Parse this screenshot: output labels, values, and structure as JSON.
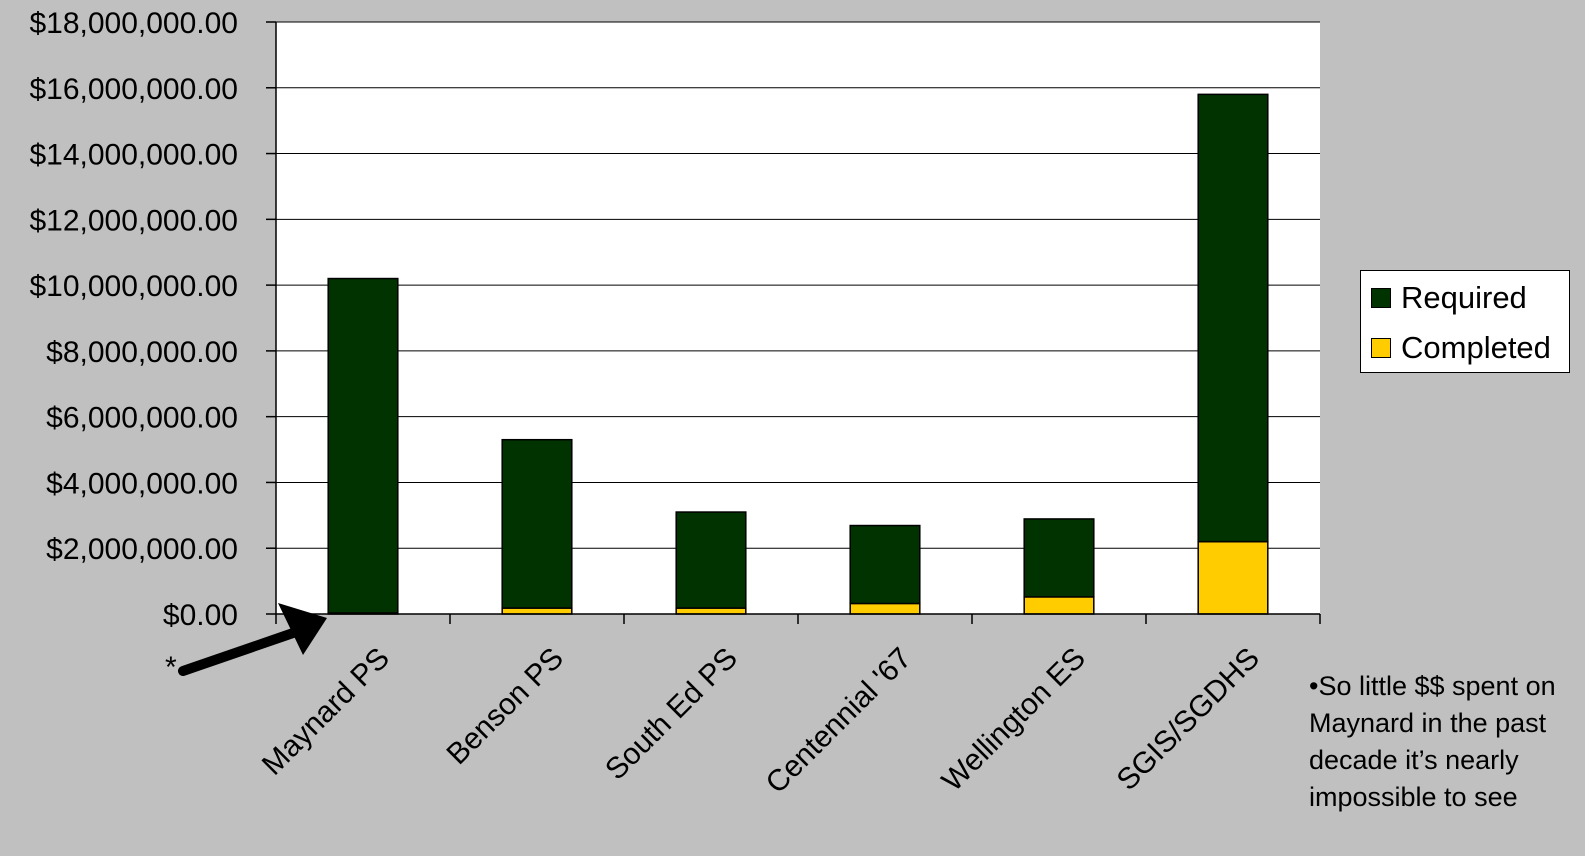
{
  "chart_data": {
    "type": "bar",
    "stacked": true,
    "categories": [
      "Maynard PS",
      "Benson PS",
      "South Ed PS",
      "Centennial '67",
      "Wellington ES",
      "SGIS/SGDHS"
    ],
    "series": [
      {
        "name": "Completed",
        "color": "#ffcc00",
        "values": [
          30000,
          180000,
          180000,
          320000,
          520000,
          2200000
        ]
      },
      {
        "name": "Required",
        "color": "#003300",
        "values": [
          10170000,
          5120000,
          2920000,
          2370000,
          2370000,
          13600000
        ]
      }
    ],
    "ylim": [
      0,
      18000000
    ],
    "yticks": [
      "$0.00",
      "$2,000,000.00",
      "$4,000,000.00",
      "$6,000,000.00",
      "$8,000,000.00",
      "$10,000,000.00",
      "$12,000,000.00",
      "$14,000,000.00",
      "$16,000,000.00",
      "$18,000,000.00"
    ],
    "grid": true,
    "legend_position": "right",
    "legend": [
      {
        "label": "Required",
        "color": "#003300"
      },
      {
        "label": "Completed",
        "color": "#ffcc00"
      }
    ],
    "annotations": {
      "asterisk": "*",
      "note": "•So little $$ spent on Maynard in the past decade it’s nearly impossible to see"
    }
  }
}
